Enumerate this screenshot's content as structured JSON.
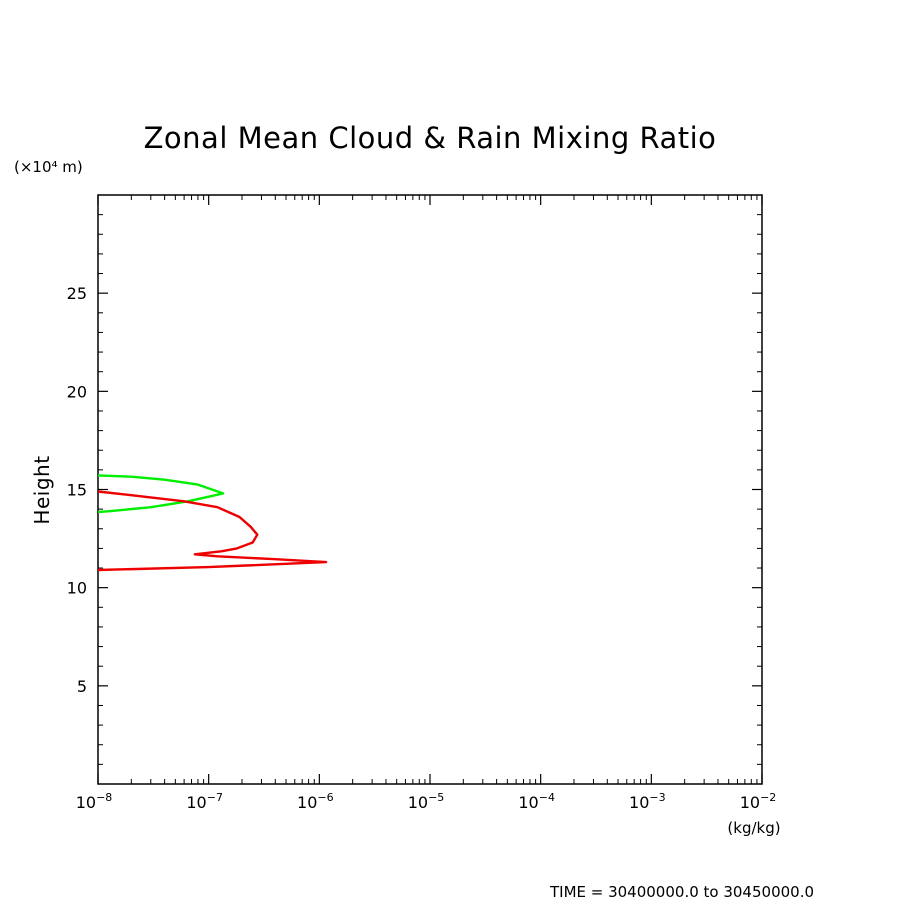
{
  "chart_data": {
    "type": "line",
    "title": "Zonal Mean Cloud & Rain Mixing Ratio",
    "ylabel": "Height",
    "yunit": "(×10⁴ m)",
    "xunit": "(kg/kg)",
    "footer": "TIME = 30400000.0 to 30450000.0",
    "xscale": "log",
    "xlim": [
      1e-08,
      0.01
    ],
    "ylim": [
      0,
      30
    ],
    "x_ticks": [
      {
        "base": "10",
        "exp": "−8"
      },
      {
        "base": "10",
        "exp": "−7"
      },
      {
        "base": "10",
        "exp": "−6"
      },
      {
        "base": "10",
        "exp": "−5"
      },
      {
        "base": "10",
        "exp": "−4"
      },
      {
        "base": "10",
        "exp": "−3"
      },
      {
        "base": "10",
        "exp": "−2"
      }
    ],
    "y_ticks": [
      "5",
      "10",
      "15",
      "20",
      "25"
    ],
    "series": [
      {
        "color": "#00ee00",
        "points": [
          [
            1e-08,
            15.72
          ],
          [
            2e-08,
            15.65
          ],
          [
            4e-08,
            15.5
          ],
          [
            8e-08,
            15.25
          ],
          [
            1.35e-07,
            14.8
          ],
          [
            6.5e-08,
            14.4
          ],
          [
            3e-08,
            14.1
          ],
          [
            1.3e-08,
            13.9
          ],
          [
            1e-08,
            13.85
          ]
        ]
      },
      {
        "color": "#ee0000",
        "points": [
          [
            1e-08,
            14.9
          ],
          [
            2.5e-08,
            14.65
          ],
          [
            6e-08,
            14.4
          ],
          [
            1.2e-07,
            14.1
          ],
          [
            1.9e-07,
            13.6
          ],
          [
            2.4e-07,
            13.1
          ],
          [
            2.75e-07,
            12.7
          ],
          [
            2.5e-07,
            12.3
          ],
          [
            1.8e-07,
            12.0
          ],
          [
            1.3e-07,
            11.85
          ],
          [
            7.5e-08,
            11.7
          ],
          [
            1.2e-07,
            11.6
          ],
          [
            4e-07,
            11.45
          ],
          [
            1.15e-06,
            11.3
          ],
          [
            1e-07,
            11.05
          ],
          [
            1e-08,
            10.9
          ]
        ]
      }
    ]
  }
}
